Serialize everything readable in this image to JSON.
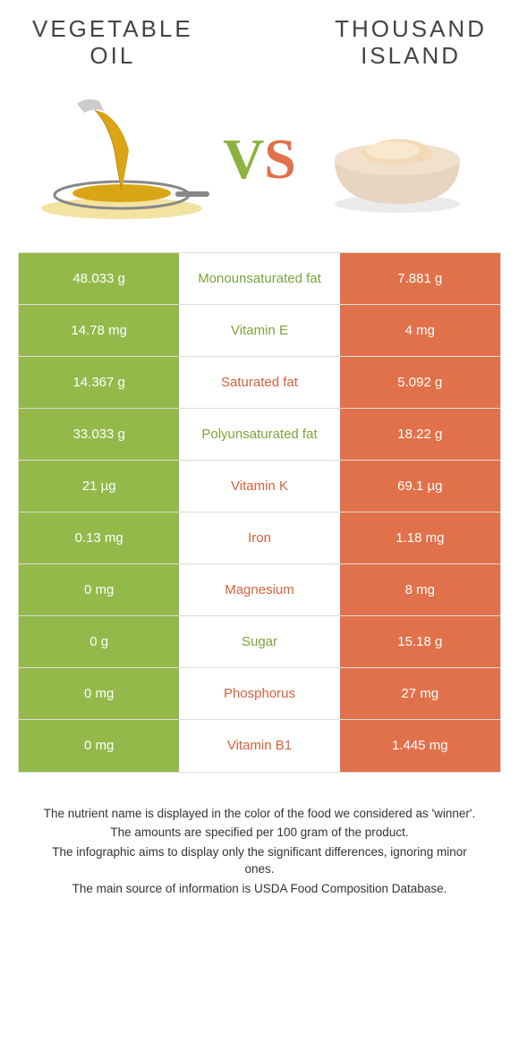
{
  "colors": {
    "left_bg": "#93b94a",
    "right_bg": "#e1714a",
    "left_label": "#7da338",
    "right_label": "#d4613c",
    "border": "#dcdcdc",
    "text": "#333333"
  },
  "titles": {
    "left": "VEGETABLE\nOIL",
    "right": "THOUSAND\nISLAND"
  },
  "vs": {
    "v": "V",
    "s": "S"
  },
  "rows": [
    {
      "left": "48.033 g",
      "label": "Monounsaturated fat",
      "right": "7.881 g",
      "winner": "left"
    },
    {
      "left": "14.78 mg",
      "label": "Vitamin E",
      "right": "4 mg",
      "winner": "left"
    },
    {
      "left": "14.367 g",
      "label": "Saturated fat",
      "right": "5.092 g",
      "winner": "right"
    },
    {
      "left": "33.033 g",
      "label": "Polyunsaturated fat",
      "right": "18.22 g",
      "winner": "left"
    },
    {
      "left": "21 µg",
      "label": "Vitamin K",
      "right": "69.1 µg",
      "winner": "right"
    },
    {
      "left": "0.13 mg",
      "label": "Iron",
      "right": "1.18 mg",
      "winner": "right"
    },
    {
      "left": "0 mg",
      "label": "Magnesium",
      "right": "8 mg",
      "winner": "right"
    },
    {
      "left": "0 g",
      "label": "Sugar",
      "right": "15.18 g",
      "winner": "left"
    },
    {
      "left": "0 mg",
      "label": "Phosphorus",
      "right": "27 mg",
      "winner": "right"
    },
    {
      "left": "0 mg",
      "label": "Vitamin B1",
      "right": "1.445 mg",
      "winner": "right"
    }
  ],
  "footer": [
    "The nutrient name is displayed in the color of the food we considered as 'winner'.",
    "The amounts are specified per 100 gram of the product.",
    "The infographic aims to display only the significant differences, ignoring minor ones.",
    "The main source of information is USDA Food Composition Database."
  ]
}
